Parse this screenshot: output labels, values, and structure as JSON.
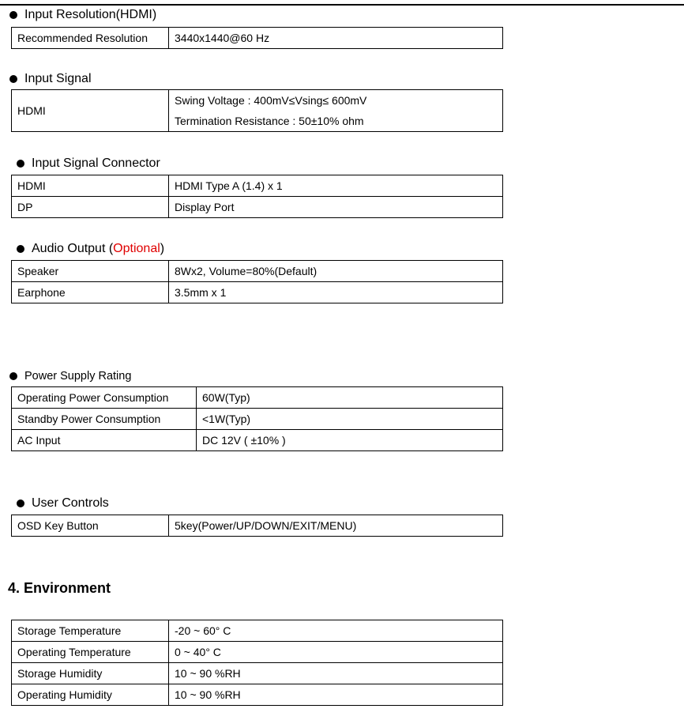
{
  "sections": [
    {
      "title": "Input Resolution(HDMI)",
      "rows": [
        [
          "Recommended Resolution",
          "3440x1440@60 Hz"
        ]
      ]
    },
    {
      "title": "Input Signal",
      "rows": [
        [
          "HDMI",
          [
            "Swing Voltage : 400mV≤Vsing≤ 600mV",
            "Termination Resistance : 50±10% ohm"
          ]
        ]
      ]
    },
    {
      "title": "Input Signal  Connector",
      "rows": [
        [
          "HDMI",
          "HDMI Type A (1.4) x 1"
        ],
        [
          "DP",
          "Display Port"
        ]
      ]
    },
    {
      "title": "Audio  Output  (",
      "title_optional": "Optional",
      "title_end": ")",
      "rows": [
        [
          "Speaker",
          "8Wx2, Volume=80%(Default)"
        ],
        [
          "Earphone",
          "3.5mm x 1"
        ]
      ]
    },
    {
      "title": "Power  Supply  Rating",
      "rows": [
        [
          "Operating Power Consumption",
          "60W(Typ)"
        ],
        [
          "Standby Power Consumption",
          "<1W(Typ)"
        ],
        [
          "AC Input",
          "DC 12V ( ±10% )"
        ]
      ]
    },
    {
      "title": "User  Controls",
      "rows": [
        [
          "OSD Key Button",
          "5key(Power/UP/DOWN/EXIT/MENU)"
        ]
      ]
    }
  ],
  "environment": {
    "heading": "4.  Environment",
    "rows": [
      [
        "Storage Temperature",
        "-20 ~ 60° C"
      ],
      [
        "Operating Temperature",
        "0 ~ 40° C"
      ],
      [
        "Storage Humidity",
        "10 ~ 90 %RH"
      ],
      [
        "Operating Humidity",
        "10 ~ 90 %RH"
      ]
    ]
  },
  "colors": {
    "optional": "#e00000"
  }
}
